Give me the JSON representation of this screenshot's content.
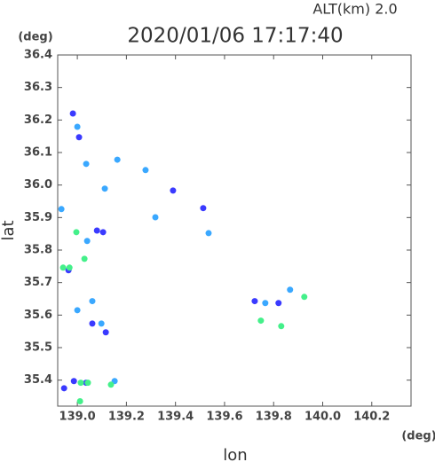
{
  "chart_data": {
    "type": "scatter",
    "title": "2020/01/06 17:17:40",
    "subtitle": "ALT(km)  2.0",
    "xlabel": "lon",
    "ylabel": "lat",
    "xunit": "(deg)",
    "yunit": "(deg)",
    "xlim": [
      138.92,
      140.36
    ],
    "ylim": [
      35.32,
      36.4
    ],
    "xticks": [
      {
        "value": 139,
        "label": "139.0"
      },
      139.2,
      139.4,
      139.6,
      139.8,
      {
        "value": 140,
        "label": "140.0"
      },
      140.2
    ],
    "yticks": [
      35.4,
      35.5,
      35.6,
      35.7,
      35.8,
      35.9,
      {
        "value": 36,
        "label": "36.0"
      },
      36.1,
      36.2,
      36.3,
      36.4
    ],
    "series": [
      {
        "color": "#3a3aff",
        "x": [
          138.982,
          139.007,
          138.946,
          138.986,
          139.036,
          139.08,
          138.964,
          139.116,
          139.061,
          139.39,
          139.513,
          139.723,
          139.82,
          139.105
        ],
        "values": [
          36.22,
          36.147,
          35.375,
          35.397,
          35.392,
          35.86,
          35.738,
          35.547,
          35.574,
          35.983,
          35.929,
          35.643,
          35.637,
          35.855
        ]
      },
      {
        "color": "#3aa8ff",
        "x": [
          139.0,
          138.935,
          139.04,
          139.112,
          139.163,
          139.318,
          139.098,
          139.0,
          139.152,
          139.061,
          139.766,
          139.867,
          139.278,
          139.036,
          139.535
        ],
        "values": [
          36.179,
          35.926,
          35.828,
          35.989,
          36.078,
          35.901,
          35.574,
          35.615,
          35.397,
          35.643,
          35.637,
          35.678,
          36.046,
          36.065,
          35.852
        ]
      },
      {
        "color": "#44f08a",
        "x": [
          138.942,
          138.968,
          139.014,
          139.043,
          139.011,
          139.137,
          138.996,
          139.029,
          139.831,
          139.925,
          139.748
        ],
        "values": [
          35.746,
          35.746,
          35.392,
          35.392,
          35.335,
          35.386,
          35.855,
          35.773,
          35.566,
          35.656,
          35.583
        ]
      }
    ]
  }
}
